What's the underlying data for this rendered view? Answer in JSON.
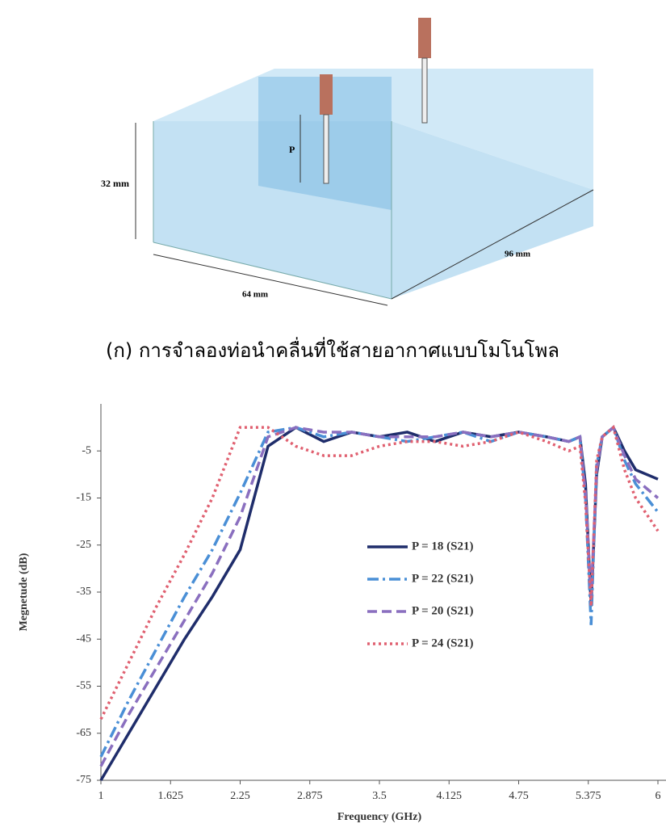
{
  "figure": {
    "labels": {
      "height": "32 mm",
      "width": "64 mm",
      "depth": "96 mm",
      "probe": "P"
    },
    "caption": "(ก) การจำลองท่อนำคลื่นที่ใช้สายอากาศแบบโมโนโพล"
  },
  "chart_data": {
    "type": "line",
    "x_label": "Frequency (GHz)",
    "y_label": "Megnetude (dB)",
    "x": [
      1,
      1.25,
      1.5,
      1.75,
      2,
      2.25,
      2.5,
      2.75,
      3,
      3.25,
      3.5,
      3.75,
      4,
      4.25,
      4.5,
      4.75,
      5,
      5.2,
      5.3,
      5.35,
      5.4,
      5.45,
      5.5,
      5.6,
      5.7,
      5.8,
      6
    ],
    "series": [
      {
        "name": "P = 18 (S21)",
        "color": "#1f2d6b",
        "dash": "solid",
        "values": [
          -75,
          -65,
          -55,
          -45,
          -36,
          -26,
          -4,
          0,
          -3,
          -1,
          -2,
          -1,
          -3,
          -1,
          -2,
          -1,
          -2,
          -3,
          -2,
          -12,
          -38,
          -10,
          -2,
          0,
          -5,
          -9,
          -11
        ]
      },
      {
        "name": "P = 22 (S21)",
        "color": "#4a8fd6",
        "dash": "dashdot",
        "values": [
          -70,
          -58,
          -47,
          -36,
          -26,
          -14,
          -1,
          0,
          -2,
          -1,
          -2,
          -3,
          -2,
          -1,
          -3,
          -1,
          -2,
          -3,
          -2,
          -15,
          -42,
          -8,
          -2,
          0,
          -7,
          -12,
          -18
        ]
      },
      {
        "name": "P = 20 (S21)",
        "color": "#8a6fbf",
        "dash": "dashed",
        "values": [
          -72,
          -61,
          -51,
          -41,
          -31,
          -19,
          -2,
          0,
          -1,
          -1,
          -2,
          -2,
          -2,
          -1,
          -2,
          -1,
          -2,
          -3,
          -2,
          -14,
          -36,
          -9,
          -2,
          0,
          -6,
          -11,
          -15
        ]
      },
      {
        "name": "P = 24 (S21)",
        "color": "#e06070",
        "dash": "dotted",
        "values": [
          -62,
          -50,
          -38,
          -27,
          -15,
          0,
          0,
          -4,
          -6,
          -6,
          -4,
          -3,
          -3,
          -4,
          -3,
          -1,
          -3,
          -5,
          -4,
          -16,
          -38,
          -7,
          -2,
          0,
          -9,
          -15,
          -22
        ]
      }
    ],
    "xlim": [
      1,
      6
    ],
    "ylim": [
      -75,
      5
    ],
    "xticks": [
      1,
      1.625,
      2.25,
      2.875,
      3.5,
      4.125,
      4.75,
      5.375,
      6
    ],
    "yticks": [
      -5,
      -15,
      -25,
      -35,
      -45,
      -55,
      -65,
      -75
    ]
  }
}
